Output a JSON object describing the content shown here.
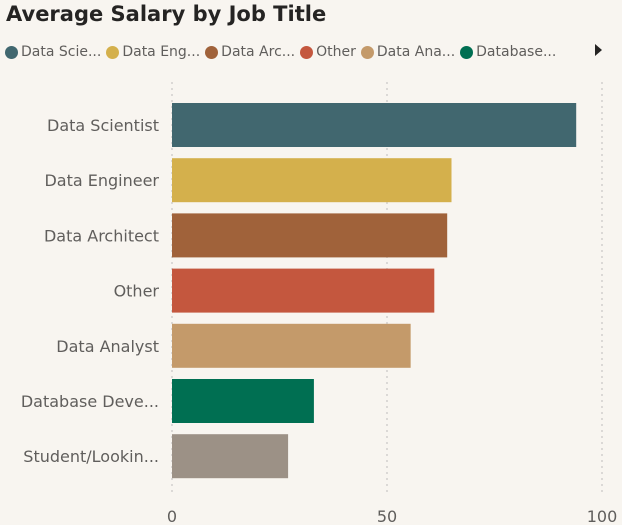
{
  "chart_data": {
    "type": "bar",
    "orientation": "horizontal",
    "title": "Average Salary by Job Title",
    "categories": [
      "Data Scientist",
      "Data Engineer",
      "Data Architect",
      "Other",
      "Data Analyst",
      "Database Deve...",
      "Student/Lookin..."
    ],
    "values": [
      94,
      65,
      64,
      61,
      55.5,
      33,
      27
    ],
    "colors": [
      "#41676f",
      "#d4b04c",
      "#a0623a",
      "#c4573e",
      "#c49a6a",
      "#006f52",
      "#9c9186"
    ],
    "xlim": [
      0,
      100
    ],
    "x_ticks": [
      "0",
      "50",
      "100"
    ],
    "grid": "vertical-dotted",
    "legend_position": "top-left",
    "legend": [
      {
        "label": "Data Scie...",
        "color": "#41676f"
      },
      {
        "label": "Data Eng...",
        "color": "#d4b04c"
      },
      {
        "label": "Data Arc...",
        "color": "#a0623a"
      },
      {
        "label": "Other",
        "color": "#c4573e"
      },
      {
        "label": "Data Ana...",
        "color": "#c49a6a"
      },
      {
        "label": "Database...",
        "color": "#006f52"
      }
    ]
  },
  "legend_scroll_icon": "chevron-right-icon"
}
